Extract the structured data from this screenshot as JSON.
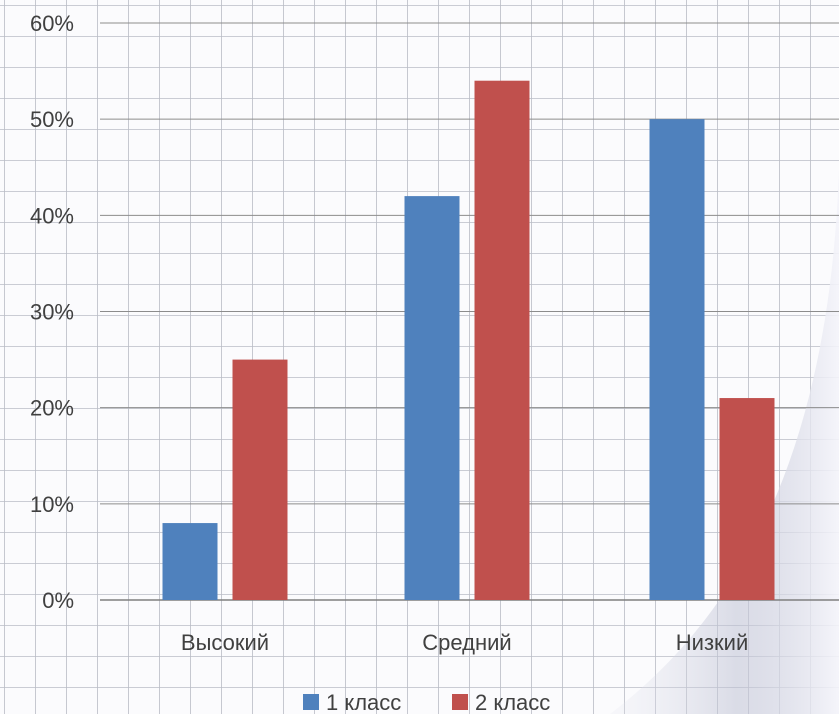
{
  "chart_data": {
    "type": "bar",
    "categories": [
      "Высокий",
      "Средний",
      "Низкий"
    ],
    "series": [
      {
        "name": "1 класс",
        "values": [
          8,
          42,
          50
        ],
        "color": "#4F81BD"
      },
      {
        "name": "2 класс",
        "values": [
          25,
          54,
          21
        ],
        "color": "#C0504D"
      }
    ],
    "yticks": [
      "0%",
      "10%",
      "20%",
      "30%",
      "40%",
      "50%",
      "60%"
    ],
    "ylim": [
      0,
      60
    ],
    "grid": true,
    "legend_position": "bottom",
    "title": "",
    "xlabel": "",
    "ylabel": ""
  }
}
